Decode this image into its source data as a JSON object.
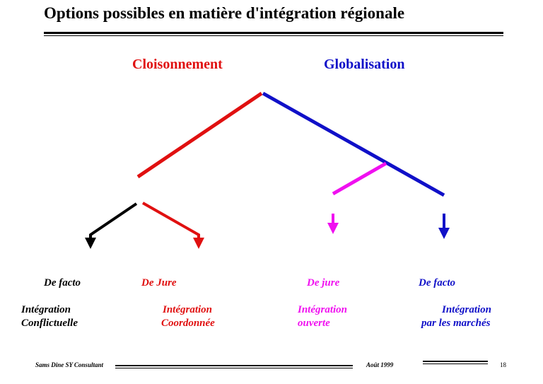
{
  "title": "Options possibles en matière d'intégration régionale",
  "branches": {
    "left": {
      "label": "Cloisonnement",
      "color": "#e01010"
    },
    "right": {
      "label": "Globalisation",
      "color": "#1010c8"
    }
  },
  "accent_color": "#f010f0",
  "outcomes": [
    {
      "name": "De facto",
      "line1": "Intégration",
      "line2": "Conflictuelle",
      "color": "#000000"
    },
    {
      "name": "De Jure",
      "line1": "Intégration",
      "line2": "Coordonnée",
      "color": "#e01010"
    },
    {
      "name": "De jure",
      "line1": "Intégration",
      "line2": "ouverte",
      "color": "#f010f0"
    },
    {
      "name": "De facto",
      "line1": "Intégration",
      "line2": "par les marchés",
      "color": "#1010c8"
    }
  ],
  "footer": {
    "author": "Sams Dine SY Consultant",
    "date": "Août 1999",
    "page": "18"
  }
}
